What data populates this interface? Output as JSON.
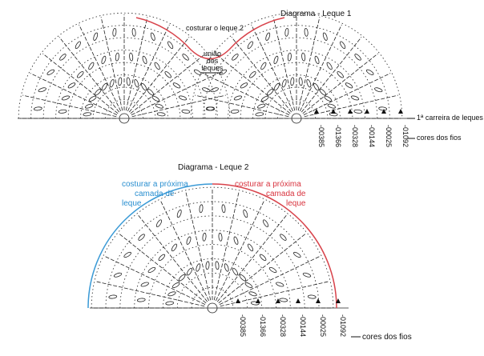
{
  "diagram1": {
    "title": "Diagrama - Leque 1",
    "sew_label": "costurar o leque 2",
    "join_label": [
      "união",
      "dos",
      "leques"
    ],
    "first_row_label": "1ª carreira de leques",
    "color_codes": [
      "-00385",
      "-01366",
      "-00328",
      "-00144",
      "-00025",
      "-01092"
    ],
    "colors_label": "cores dos fios"
  },
  "diagram2": {
    "title": "Diagrama - Leque 2",
    "sew_left": [
      "costurar a próxima",
      "camada de",
      "leque"
    ],
    "sew_right": [
      "costurar a próxima",
      "camada de",
      "leque"
    ],
    "color_codes": [
      "-00385",
      "-01366",
      "-00328",
      "-00144",
      "-00025",
      "-01092"
    ],
    "colors_label": "cores dos fios"
  }
}
